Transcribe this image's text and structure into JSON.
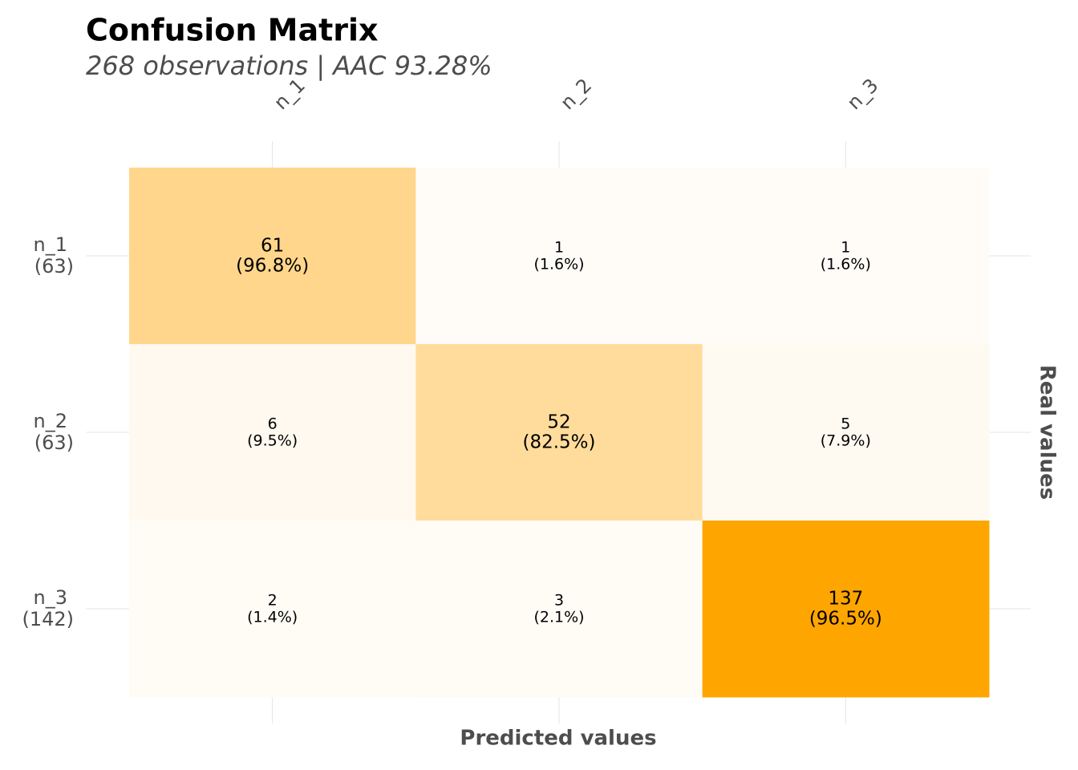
{
  "chart_data": {
    "type": "heatmap",
    "title": "Confusion Matrix",
    "subtitle": "268 observations | AAC 93.28%",
    "x_label": "Predicted values",
    "y_label": "Real values",
    "x_categories": [
      "n_1",
      "n_2",
      "n_3"
    ],
    "y_categories": [
      "n_1",
      "n_2",
      "n_3"
    ],
    "y_category_totals": [
      "(63)",
      "(63)",
      "(142)"
    ],
    "values": [
      [
        61,
        1,
        1
      ],
      [
        6,
        52,
        5
      ],
      [
        2,
        3,
        137
      ]
    ],
    "value_labels_secondary": [
      [
        "(96.8%)",
        "(1.6%)",
        "(1.6%)"
      ],
      [
        "(9.5%)",
        "(82.5%)",
        "(7.9%)"
      ],
      [
        "(1.4%)",
        "(2.1%)",
        "(96.5%)"
      ]
    ],
    "color_low": "#fffdfa",
    "color_high": "#ffa500"
  }
}
